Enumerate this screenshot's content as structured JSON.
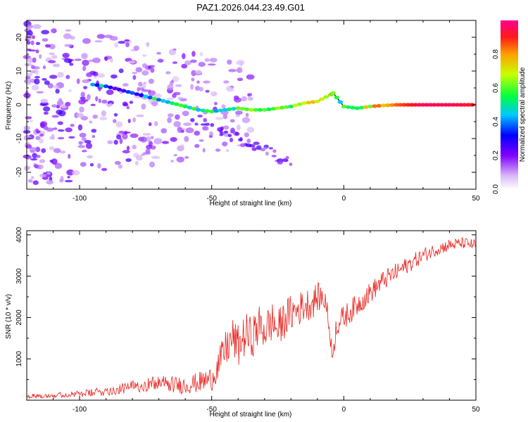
{
  "title": "PAZ1.2026.044.23.49.G01",
  "colors": {
    "axis": "#000000",
    "snr_line": "#e8231f",
    "ridge_low": "#7b1fe0",
    "ridge_high": "#ff2020"
  },
  "chart_data": [
    {
      "type": "heatmap",
      "name": "spectrogram",
      "xlabel": "Height of straight line (km)",
      "ylabel": "Frequency (Hz)",
      "xlim": [
        -120,
        50
      ],
      "ylim": [
        -25,
        25
      ],
      "x_ticks": [
        -100,
        -50,
        0,
        50
      ],
      "x_tick_labels": [
        "-100",
        "-50",
        "0",
        "50"
      ],
      "y_ticks": [
        -20,
        -10,
        0,
        10,
        20
      ],
      "y_tick_labels": [
        "-20",
        "-10",
        "0",
        "10",
        "20"
      ],
      "colorbar": {
        "label": "Normalized spectral amplitude",
        "range": [
          0,
          1
        ],
        "ticks": [
          0.0,
          0.2,
          0.4,
          0.6,
          0.8
        ],
        "tick_labels": [
          "0.0",
          "0.2",
          "0.4",
          "0.6",
          "0.8"
        ]
      },
      "ridge": {
        "description": "dominant frequency ridge vs height",
        "x": [
          -95,
          -90,
          -85,
          -80,
          -75,
          -70,
          -65,
          -60,
          -55,
          -50,
          -45,
          -40,
          -35,
          -30,
          -25,
          -20,
          -15,
          -10,
          -5,
          -4,
          0,
          5,
          10,
          15,
          20,
          30,
          40,
          50
        ],
        "y": [
          6,
          5.5,
          4.5,
          3.5,
          2.5,
          1.5,
          0.5,
          -0.5,
          -1.5,
          -2,
          -1.5,
          -1,
          -1.5,
          -1.5,
          -1,
          -0.5,
          0.5,
          1,
          3,
          3.5,
          -0.5,
          -1,
          -0.5,
          -0.2,
          0,
          0,
          0,
          0
        ],
        "amplitude": [
          0.35,
          0.3,
          0.28,
          0.3,
          0.4,
          0.45,
          0.5,
          0.55,
          0.5,
          0.45,
          0.4,
          0.45,
          0.55,
          0.6,
          0.5,
          0.55,
          0.6,
          0.7,
          0.6,
          0.55,
          0.5,
          0.6,
          0.65,
          0.75,
          0.85,
          0.95,
          0.95,
          0.9
        ]
      }
    },
    {
      "type": "line",
      "name": "snr",
      "xlabel": "Height of straight line (km)",
      "ylabel": "SNR (10 * v/v)",
      "xlim": [
        -120,
        50
      ],
      "ylim": [
        0,
        4100
      ],
      "x_ticks": [
        -100,
        -50,
        0,
        50
      ],
      "x_tick_labels": [
        "-100",
        "-50",
        "0",
        "50"
      ],
      "y_ticks": [
        1000,
        2000,
        3000,
        4000
      ],
      "y_tick_labels": [
        "1000",
        "2000",
        "3000",
        "4000"
      ],
      "series": [
        {
          "name": "SNR",
          "x": [
            -120,
            -110,
            -100,
            -95,
            -90,
            -85,
            -80,
            -75,
            -70,
            -65,
            -60,
            -55,
            -50,
            -47,
            -45,
            -42,
            -40,
            -37,
            -35,
            -32,
            -30,
            -27,
            -25,
            -22,
            -20,
            -17,
            -15,
            -12,
            -10,
            -7,
            -5,
            -4,
            -3,
            0,
            5,
            10,
            15,
            20,
            25,
            30,
            35,
            40,
            45,
            50
          ],
          "values": [
            100,
            120,
            150,
            180,
            220,
            260,
            330,
            380,
            420,
            380,
            360,
            430,
            520,
            900,
            1200,
            1500,
            1300,
            1600,
            1500,
            1800,
            1700,
            1900,
            1700,
            2000,
            2100,
            2200,
            2300,
            2350,
            2500,
            2450,
            1500,
            1000,
            1800,
            2000,
            2300,
            2600,
            2900,
            3100,
            3300,
            3500,
            3650,
            3750,
            3800,
            3750
          ],
          "noise_amplitude": [
            60,
            60,
            80,
            100,
            110,
            130,
            150,
            170,
            190,
            200,
            220,
            250,
            300,
            400,
            450,
            500,
            520,
            520,
            520,
            500,
            500,
            480,
            480,
            450,
            450,
            420,
            400,
            400,
            350,
            330,
            250,
            200,
            300,
            300,
            280,
            260,
            240,
            220,
            200,
            180,
            160,
            150,
            140,
            140
          ]
        }
      ]
    }
  ]
}
